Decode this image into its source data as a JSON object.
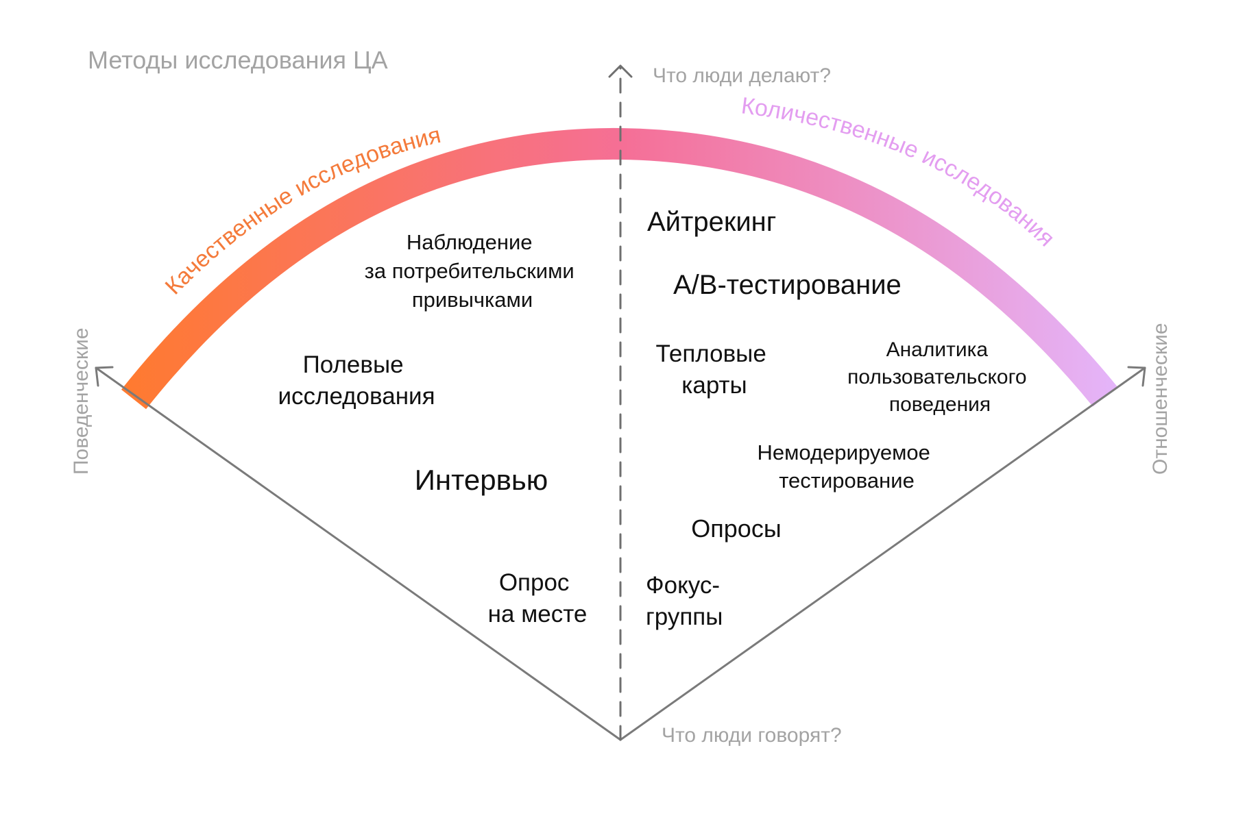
{
  "title": "Методы исследования ЦА",
  "axis": {
    "top_label": "Что люди делают?",
    "bottom_label": "Что люди говорят?",
    "left_label": "Поведенческие",
    "right_label": "Отношенческие"
  },
  "arc": {
    "left_label": "Качественные исследования",
    "right_label": "Количественные исследования",
    "colors": {
      "start": "#ff7a2f",
      "mid": "#f56f96",
      "end": "#e4b6fb"
    },
    "left_label_color": "#f47a3a",
    "right_label_color": "#e39df0"
  },
  "methods": {
    "observation": [
      "Наблюдение",
      "за потребительскими",
      "привычками"
    ],
    "field": [
      "Полевые",
      "исследования"
    ],
    "interview": [
      "Интервью"
    ],
    "intercept": [
      "Опрос",
      "на месте"
    ],
    "eyetracking": [
      "Айтрекинг"
    ],
    "ab_testing": [
      "А/В-тестирование"
    ],
    "heatmaps": [
      "Тепловые",
      "карты"
    ],
    "analytics": [
      "Аналитика",
      "пользовательского",
      "поведения"
    ],
    "unmoderated": [
      "Немодерируемое",
      "тестирование"
    ],
    "surveys": [
      "Опросы"
    ],
    "focus_groups": [
      "Фокус-",
      "группы"
    ]
  }
}
